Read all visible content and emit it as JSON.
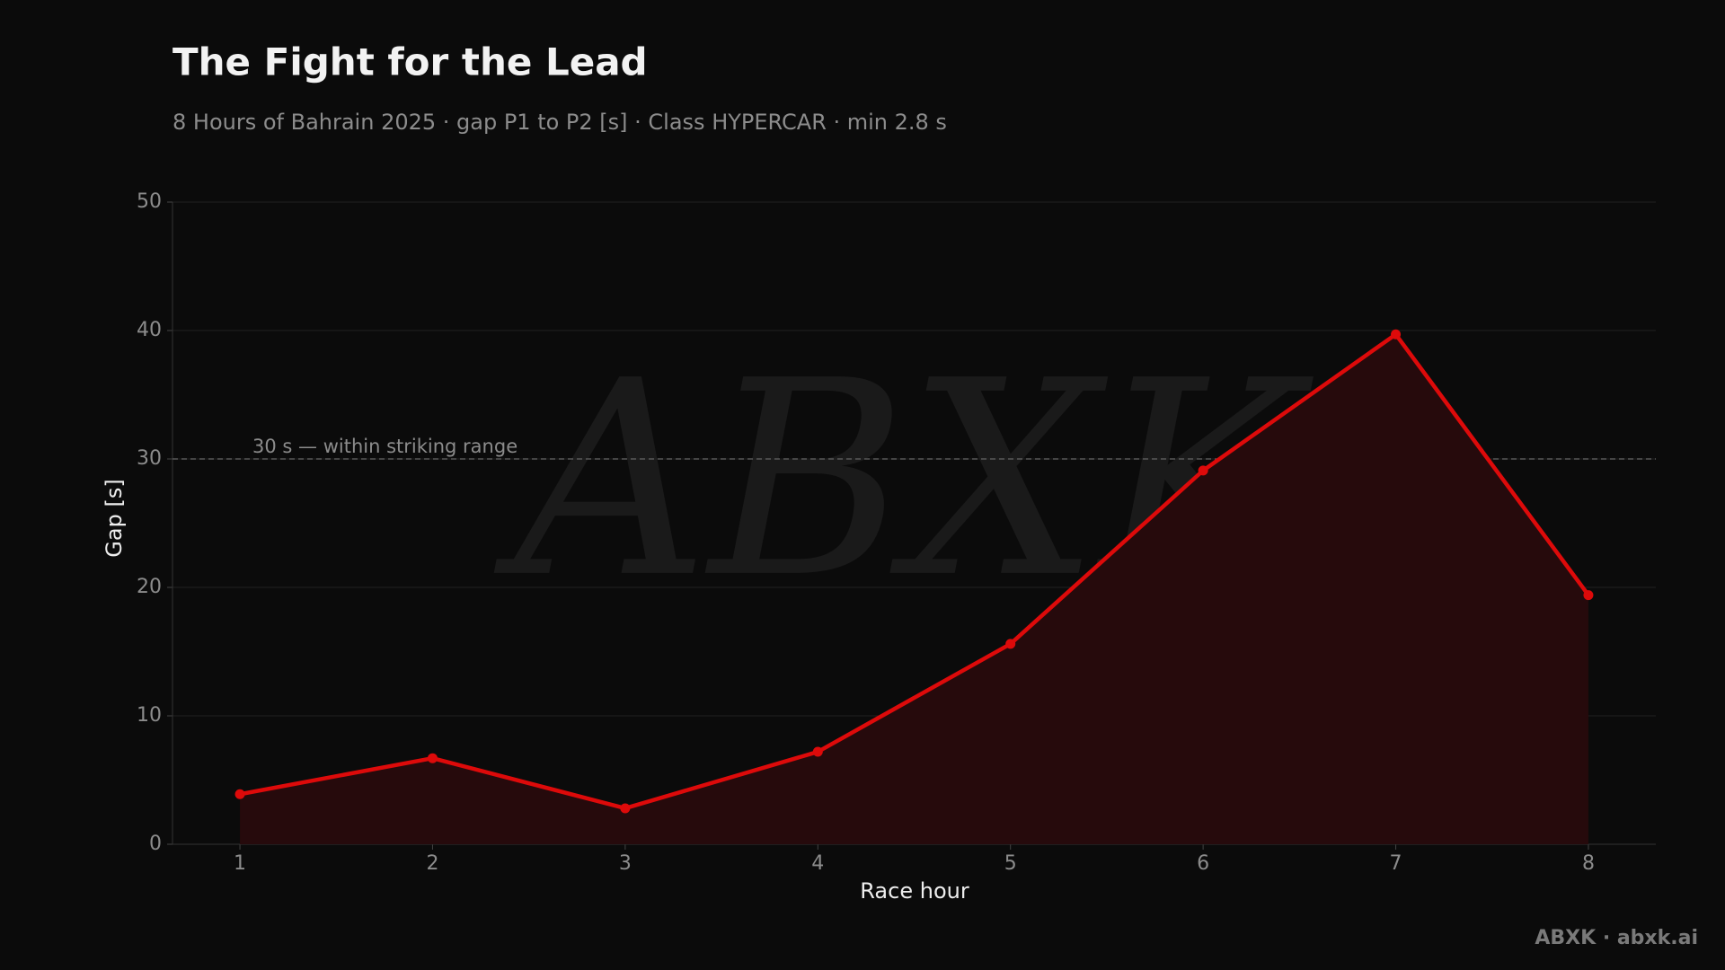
{
  "chart_data": {
    "type": "line",
    "title": "The Fight for the Lead",
    "subtitle": "8 Hours of Bahrain 2025 · gap P1 to P2 [s] · Class HYPERCAR · min 2.8 s",
    "x_label": "Race hour",
    "y_label": "Gap [s]",
    "x": [
      1,
      2,
      3,
      4,
      5,
      6,
      7,
      8
    ],
    "values": [
      3.9,
      6.7,
      2.8,
      7.2,
      15.6,
      29.1,
      39.7,
      19.4
    ],
    "color": "#dd0a0a",
    "fill_color": "#260a0c",
    "xlim": [
      0.65,
      8.35
    ],
    "xticks": [
      1,
      2,
      3,
      4,
      5,
      6,
      7,
      8
    ],
    "ylim": [
      0,
      50
    ],
    "yticks": [
      0,
      10,
      20,
      30,
      40,
      50
    ],
    "grid": true,
    "reference_line": {
      "value": 30,
      "label": "30 s — within striking range"
    }
  },
  "watermark": "ABXK",
  "footer": "ABXK · abxk.ai"
}
